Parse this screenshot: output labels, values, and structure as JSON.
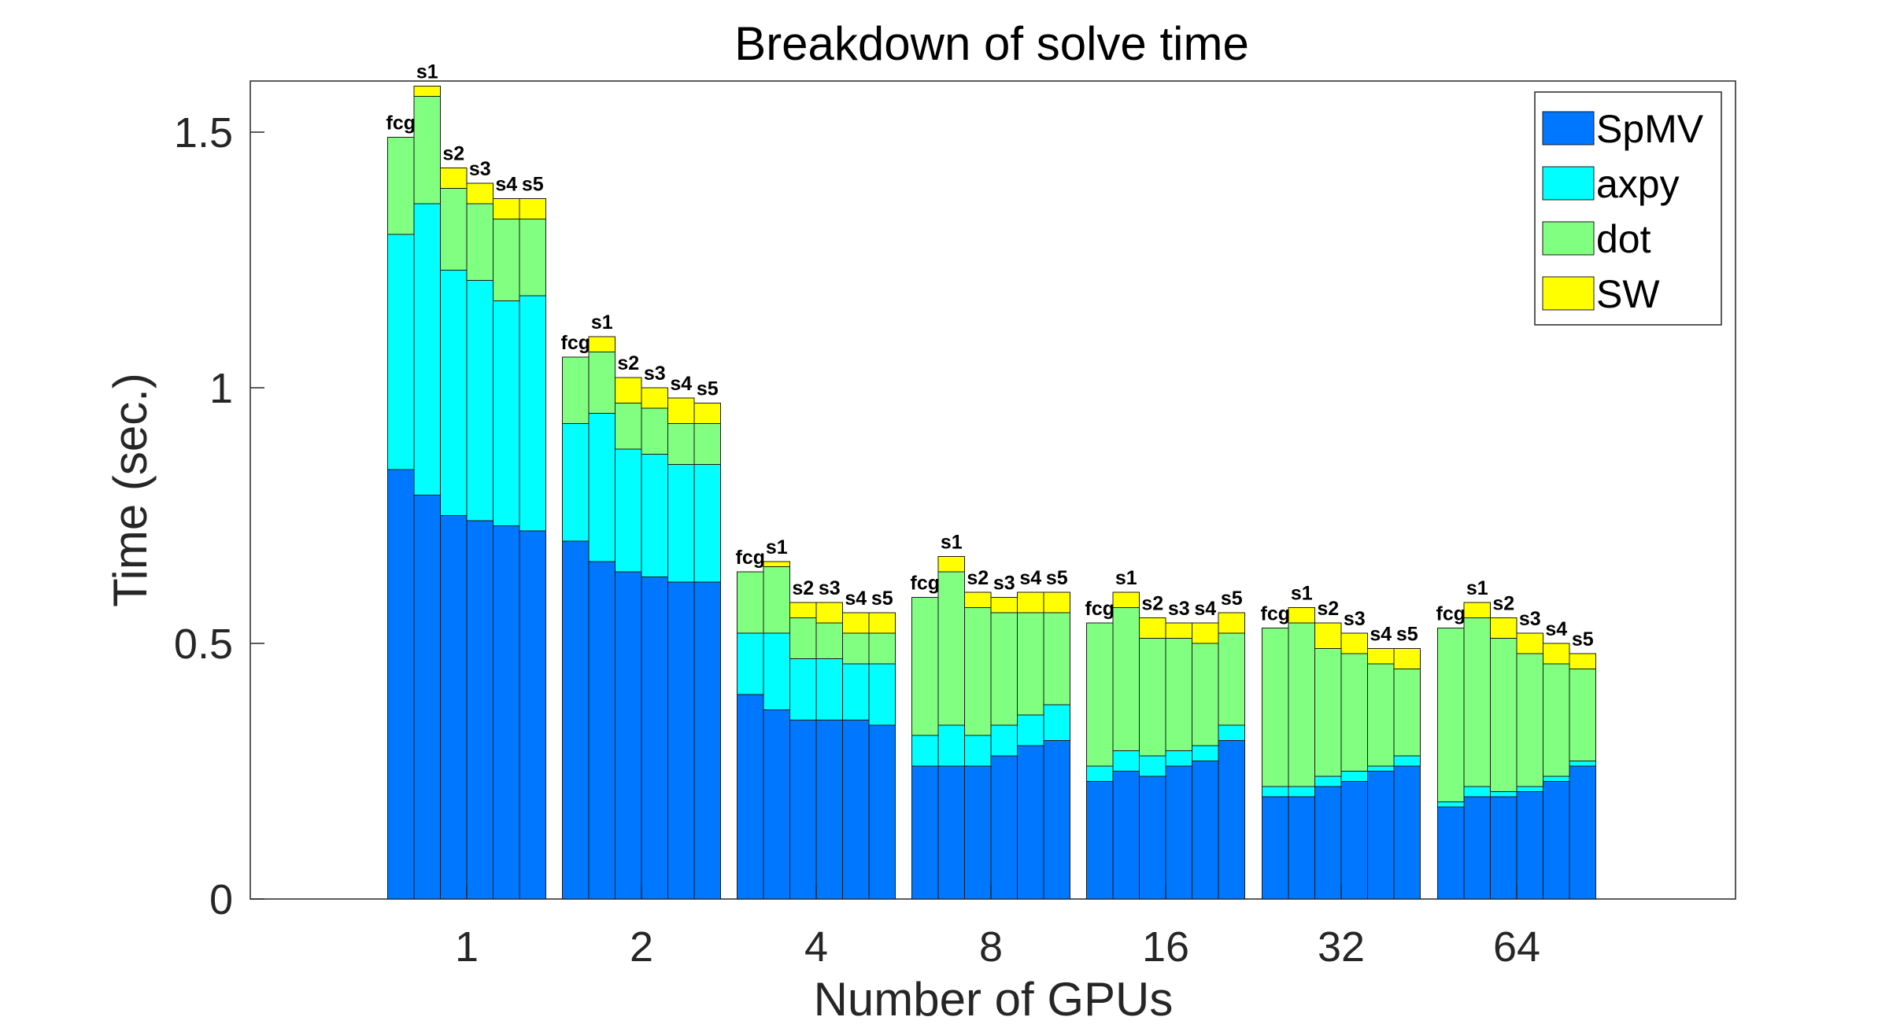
{
  "chart_data": {
    "type": "bar",
    "stacked": true,
    "title": "Breakdown of solve time",
    "xlabel": "Number of GPUs",
    "ylabel": "Time (sec.)",
    "ylim": [
      0,
      1.6
    ],
    "yticks": [
      0,
      0.5,
      1,
      1.5
    ],
    "ytick_labels": [
      "0",
      "0.5",
      "1",
      "1.5"
    ],
    "legend_position": "top-right",
    "colors": {
      "SpMV": "#0077ff",
      "axpy": "#00ffff",
      "dot": "#80ff80",
      "SW": "#ffff00"
    },
    "series_names": [
      "SpMV",
      "axpy",
      "dot",
      "SW"
    ],
    "groups": [
      {
        "label": "1",
        "bars": [
          {
            "label": "fcg",
            "values": [
              0.84,
              0.46,
              0.19,
              0.0
            ]
          },
          {
            "label": "s1",
            "values": [
              0.79,
              0.57,
              0.21,
              0.02
            ]
          },
          {
            "label": "s2",
            "values": [
              0.75,
              0.48,
              0.16,
              0.04
            ]
          },
          {
            "label": "s3",
            "values": [
              0.74,
              0.47,
              0.15,
              0.04
            ]
          },
          {
            "label": "s4",
            "values": [
              0.73,
              0.44,
              0.16,
              0.04
            ]
          },
          {
            "label": "s5",
            "values": [
              0.72,
              0.46,
              0.15,
              0.04
            ]
          }
        ]
      },
      {
        "label": "2",
        "bars": [
          {
            "label": "fcg",
            "values": [
              0.7,
              0.23,
              0.13,
              0.0
            ]
          },
          {
            "label": "s1",
            "values": [
              0.66,
              0.29,
              0.12,
              0.03
            ]
          },
          {
            "label": "s2",
            "values": [
              0.64,
              0.24,
              0.09,
              0.05
            ]
          },
          {
            "label": "s3",
            "values": [
              0.63,
              0.24,
              0.09,
              0.04
            ]
          },
          {
            "label": "s4",
            "values": [
              0.62,
              0.23,
              0.08,
              0.05
            ]
          },
          {
            "label": "s5",
            "values": [
              0.62,
              0.23,
              0.08,
              0.04
            ]
          }
        ]
      },
      {
        "label": "4",
        "bars": [
          {
            "label": "fcg",
            "values": [
              0.4,
              0.12,
              0.12,
              0.0
            ]
          },
          {
            "label": "s1",
            "values": [
              0.37,
              0.15,
              0.13,
              0.01
            ]
          },
          {
            "label": "s2",
            "values": [
              0.35,
              0.12,
              0.08,
              0.03
            ]
          },
          {
            "label": "s3",
            "values": [
              0.35,
              0.12,
              0.07,
              0.04
            ]
          },
          {
            "label": "s4",
            "values": [
              0.35,
              0.11,
              0.06,
              0.04
            ]
          },
          {
            "label": "s5",
            "values": [
              0.34,
              0.12,
              0.06,
              0.04
            ]
          }
        ]
      },
      {
        "label": "8",
        "bars": [
          {
            "label": "fcg",
            "values": [
              0.26,
              0.06,
              0.27,
              0.0
            ]
          },
          {
            "label": "s1",
            "values": [
              0.26,
              0.08,
              0.3,
              0.03
            ]
          },
          {
            "label": "s2",
            "values": [
              0.26,
              0.06,
              0.25,
              0.03
            ]
          },
          {
            "label": "s3",
            "values": [
              0.28,
              0.06,
              0.22,
              0.03
            ]
          },
          {
            "label": "s4",
            "values": [
              0.3,
              0.06,
              0.2,
              0.04
            ]
          },
          {
            "label": "s5",
            "values": [
              0.31,
              0.07,
              0.18,
              0.04
            ]
          }
        ]
      },
      {
        "label": "16",
        "bars": [
          {
            "label": "fcg",
            "values": [
              0.23,
              0.03,
              0.28,
              0.0
            ]
          },
          {
            "label": "s1",
            "values": [
              0.25,
              0.04,
              0.28,
              0.03
            ]
          },
          {
            "label": "s2",
            "values": [
              0.24,
              0.04,
              0.23,
              0.04
            ]
          },
          {
            "label": "s3",
            "values": [
              0.26,
              0.03,
              0.22,
              0.03
            ]
          },
          {
            "label": "s4",
            "values": [
              0.27,
              0.03,
              0.2,
              0.04
            ]
          },
          {
            "label": "s5",
            "values": [
              0.31,
              0.03,
              0.18,
              0.04
            ]
          }
        ]
      },
      {
        "label": "32",
        "bars": [
          {
            "label": "fcg",
            "values": [
              0.2,
              0.02,
              0.31,
              0.0
            ]
          },
          {
            "label": "s1",
            "values": [
              0.2,
              0.02,
              0.32,
              0.03
            ]
          },
          {
            "label": "s2",
            "values": [
              0.22,
              0.02,
              0.25,
              0.05
            ]
          },
          {
            "label": "s3",
            "values": [
              0.23,
              0.02,
              0.23,
              0.04
            ]
          },
          {
            "label": "s4",
            "values": [
              0.25,
              0.01,
              0.2,
              0.03
            ]
          },
          {
            "label": "s5",
            "values": [
              0.26,
              0.02,
              0.17,
              0.04
            ]
          }
        ]
      },
      {
        "label": "64",
        "bars": [
          {
            "label": "fcg",
            "values": [
              0.18,
              0.01,
              0.34,
              0.0
            ]
          },
          {
            "label": "s1",
            "values": [
              0.2,
              0.02,
              0.33,
              0.03
            ]
          },
          {
            "label": "s2",
            "values": [
              0.2,
              0.01,
              0.3,
              0.04
            ]
          },
          {
            "label": "s3",
            "values": [
              0.21,
              0.01,
              0.26,
              0.04
            ]
          },
          {
            "label": "s4",
            "values": [
              0.23,
              0.01,
              0.22,
              0.04
            ]
          },
          {
            "label": "s5",
            "values": [
              0.26,
              0.01,
              0.18,
              0.03
            ]
          }
        ]
      }
    ]
  }
}
